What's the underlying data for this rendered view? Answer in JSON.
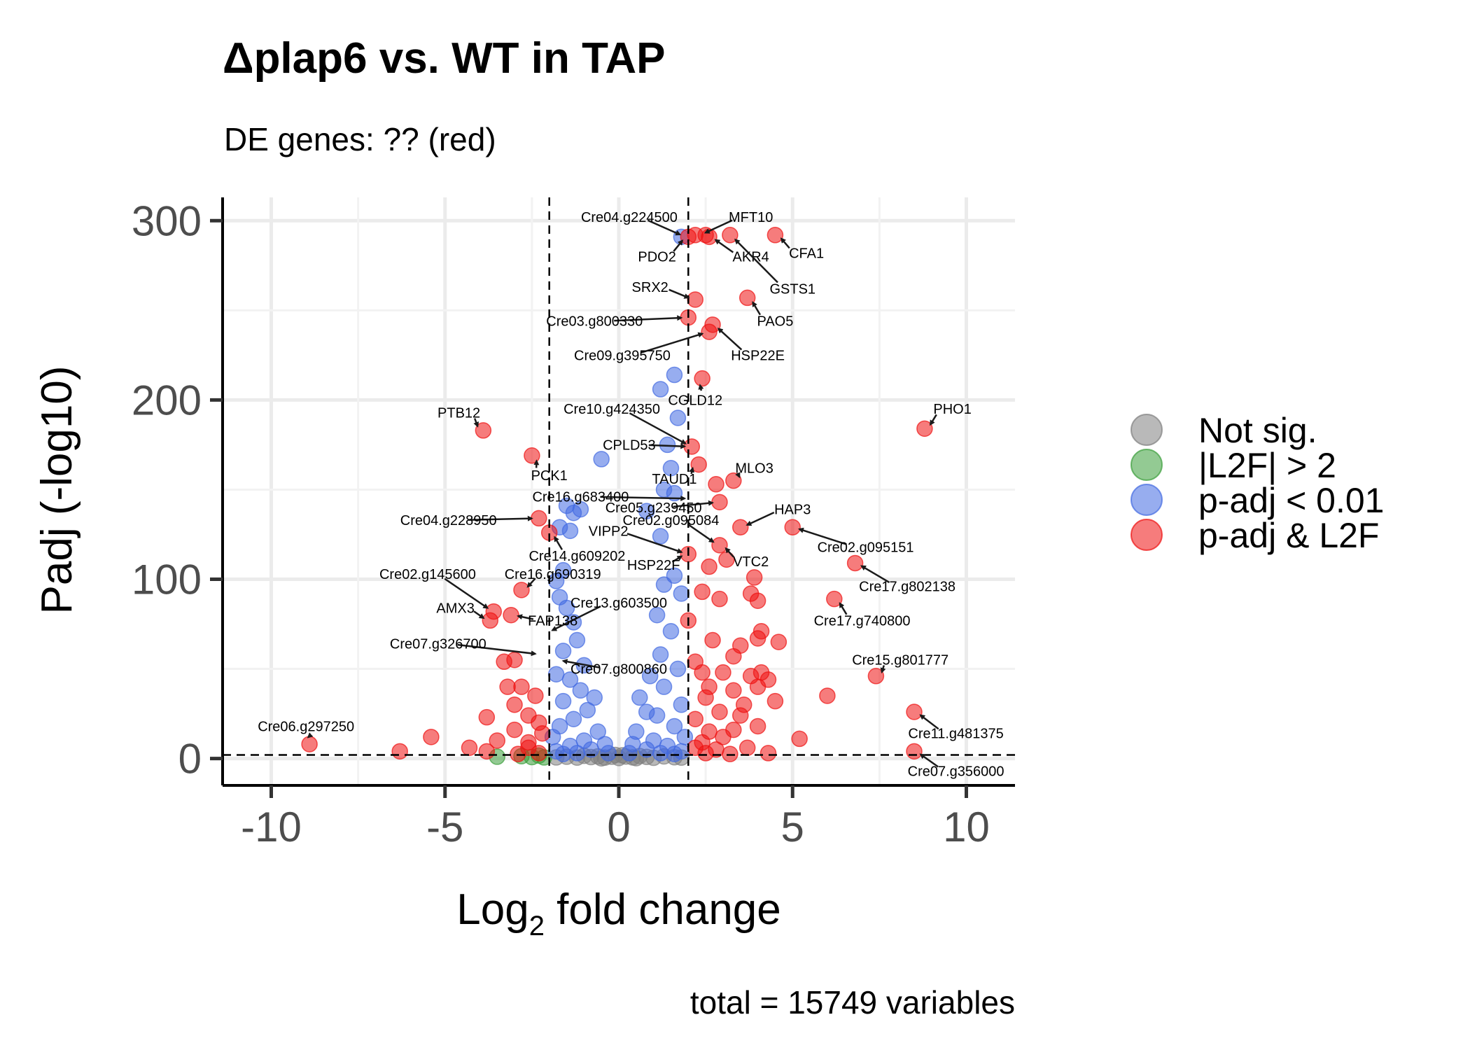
{
  "chart_data": {
    "type": "scatter",
    "title": "Δplap6 vs. WT in TAP",
    "subtitle": "DE genes: ?? (red)",
    "xlabel_main": "Log",
    "xlabel_sub": "2",
    "xlabel_rest": " fold change",
    "ylabel": "Padj (-log10)",
    "caption": "total = 15749 variables",
    "xlim": [
      -11.4,
      11.4
    ],
    "ylim": [
      -15,
      313
    ],
    "x_ticks": [
      -10,
      -5,
      0,
      5,
      10
    ],
    "x_tick_labels": [
      "-10",
      "-5",
      "0",
      "5",
      "10"
    ],
    "y_ticks": [
      0,
      100,
      200,
      300
    ],
    "y_tick_labels": [
      "0",
      "100",
      "200",
      "300"
    ],
    "grid": true,
    "vlines": [
      -2,
      2
    ],
    "hline": 2,
    "legend_position": "right",
    "legend": [
      {
        "key": "ns",
        "label": "Not sig.",
        "color": "#7f7f7f"
      },
      {
        "key": "l2f",
        "label": "|L2F| > 2",
        "color": "#3a9e3a"
      },
      {
        "key": "padj",
        "label": "p-adj < 0.01",
        "color": "#4169e1"
      },
      {
        "key": "both",
        "label": "p-adj & L2F",
        "color": "#ee1111"
      }
    ],
    "series": [
      {
        "key": "ns",
        "points": [
          [
            -1.5,
            1
          ],
          [
            -1.2,
            0.5
          ],
          [
            -1,
            1.5
          ],
          [
            -0.8,
            0.8
          ],
          [
            -0.6,
            1.2
          ],
          [
            -0.4,
            0.5
          ],
          [
            -0.2,
            1
          ],
          [
            0,
            0.3
          ],
          [
            0.2,
            1.1
          ],
          [
            0.4,
            0.6
          ],
          [
            0.6,
            1.4
          ],
          [
            0.8,
            0.9
          ],
          [
            1,
            0.4
          ],
          [
            1.3,
            1.2
          ],
          [
            1.6,
            0.7
          ],
          [
            -0.1,
            2
          ],
          [
            0.1,
            1.8
          ],
          [
            0.5,
            0.2
          ],
          [
            -0.5,
            0.1
          ],
          [
            1.8,
            0.5
          ],
          [
            -1.8,
            0.6
          ]
        ]
      },
      {
        "key": "l2f",
        "points": [
          [
            -3.5,
            1
          ],
          [
            -2.8,
            1.3
          ],
          [
            -2.5,
            0.8
          ],
          [
            -2.3,
            1.6
          ],
          [
            -2.15,
            0.6
          ]
        ]
      },
      {
        "key": "padj",
        "points": [
          [
            1.8,
            291
          ],
          [
            1.6,
            214
          ],
          [
            1.2,
            206
          ],
          [
            1.7,
            190
          ],
          [
            1.4,
            175
          ],
          [
            -0.5,
            167
          ],
          [
            1.5,
            162
          ],
          [
            1.3,
            150
          ],
          [
            1.6,
            148
          ],
          [
            -1.5,
            141
          ],
          [
            -1.1,
            139
          ],
          [
            -1.3,
            137
          ],
          [
            0.8,
            138
          ],
          [
            -1.7,
            129
          ],
          [
            -1.4,
            127
          ],
          [
            1.2,
            124
          ],
          [
            -1.6,
            105
          ],
          [
            -1.8,
            99
          ],
          [
            1.6,
            102
          ],
          [
            1.3,
            97
          ],
          [
            -1.7,
            90
          ],
          [
            1.8,
            92
          ],
          [
            -1.5,
            84
          ],
          [
            -1.3,
            76
          ],
          [
            1.1,
            80
          ],
          [
            -1.2,
            66
          ],
          [
            1.5,
            71
          ],
          [
            -1.6,
            60
          ],
          [
            1.2,
            58
          ],
          [
            -1.0,
            52
          ],
          [
            -1.8,
            47
          ],
          [
            1.7,
            50
          ],
          [
            -1.4,
            44
          ],
          [
            0.9,
            46
          ],
          [
            -1.1,
            38
          ],
          [
            1.3,
            40
          ],
          [
            -0.7,
            34
          ],
          [
            0.6,
            34
          ],
          [
            -1.6,
            32
          ],
          [
            1.8,
            30
          ],
          [
            -0.9,
            27
          ],
          [
            0.8,
            26
          ],
          [
            -1.3,
            22
          ],
          [
            1.1,
            24
          ],
          [
            -1.7,
            18
          ],
          [
            1.6,
            18
          ],
          [
            -0.6,
            15
          ],
          [
            0.5,
            15
          ],
          [
            -1.9,
            12
          ],
          [
            1.9,
            12
          ],
          [
            -1.0,
            10
          ],
          [
            1.0,
            10
          ],
          [
            -0.4,
            8
          ],
          [
            0.4,
            8
          ],
          [
            -1.4,
            7
          ],
          [
            1.4,
            7
          ],
          [
            -0.8,
            5
          ],
          [
            0.8,
            5
          ],
          [
            -1.8,
            4
          ],
          [
            1.8,
            4
          ],
          [
            -1.2,
            3
          ],
          [
            1.2,
            3
          ],
          [
            -0.3,
            3
          ],
          [
            0.3,
            3
          ],
          [
            -1.6,
            2.5
          ],
          [
            1.6,
            2.5
          ]
        ]
      },
      {
        "key": "both",
        "points": [
          [
            2.0,
            291
          ],
          [
            2.2,
            292
          ],
          [
            2.5,
            292
          ],
          [
            2.6,
            291
          ],
          [
            3.2,
            292
          ],
          [
            4.5,
            292
          ],
          [
            2.2,
            256
          ],
          [
            3.7,
            257
          ],
          [
            2.0,
            246
          ],
          [
            2.7,
            242
          ],
          [
            2.6,
            238
          ],
          [
            2.4,
            212
          ],
          [
            2.1,
            174
          ],
          [
            2.3,
            164
          ],
          [
            -3.9,
            183
          ],
          [
            -2.5,
            169
          ],
          [
            8.8,
            184
          ],
          [
            3.3,
            155
          ],
          [
            2.8,
            153
          ],
          [
            2.9,
            143
          ],
          [
            -2.3,
            134
          ],
          [
            3.5,
            129
          ],
          [
            5.0,
            129
          ],
          [
            -2.0,
            126
          ],
          [
            2.9,
            119
          ],
          [
            2.0,
            114
          ],
          [
            2.6,
            107
          ],
          [
            3.1,
            111
          ],
          [
            3.9,
            101
          ],
          [
            6.8,
            109
          ],
          [
            -2.8,
            94
          ],
          [
            2.4,
            93
          ],
          [
            2.9,
            89
          ],
          [
            3.8,
            92
          ],
          [
            4.0,
            88
          ],
          [
            6.2,
            89
          ],
          [
            -3.6,
            82
          ],
          [
            -3.7,
            77
          ],
          [
            -3.1,
            80
          ],
          [
            2.0,
            77
          ],
          [
            4.1,
            71
          ],
          [
            4.0,
            67
          ],
          [
            2.7,
            66
          ],
          [
            3.5,
            63
          ],
          [
            4.6,
            65
          ],
          [
            2.2,
            54
          ],
          [
            -3.3,
            54
          ],
          [
            -3.0,
            55
          ],
          [
            3.3,
            57
          ],
          [
            4.1,
            48
          ],
          [
            7.4,
            46
          ],
          [
            3.0,
            48
          ],
          [
            2.4,
            48
          ],
          [
            3.8,
            46
          ],
          [
            4.3,
            44
          ],
          [
            -3.2,
            40
          ],
          [
            -2.8,
            40
          ],
          [
            2.6,
            40
          ],
          [
            3.3,
            38
          ],
          [
            4.0,
            40
          ],
          [
            6.0,
            35
          ],
          [
            4.5,
            32
          ],
          [
            -2.4,
            35
          ],
          [
            -3.0,
            30
          ],
          [
            2.5,
            34
          ],
          [
            3.6,
            30
          ],
          [
            8.5,
            26
          ],
          [
            -3.8,
            23
          ],
          [
            -2.6,
            24
          ],
          [
            2.9,
            26
          ],
          [
            3.5,
            24
          ],
          [
            2.2,
            22
          ],
          [
            -2.3,
            20
          ],
          [
            4.0,
            18
          ],
          [
            3.3,
            16
          ],
          [
            -5.4,
            12
          ],
          [
            -3.0,
            16
          ],
          [
            -2.2,
            14
          ],
          [
            2.6,
            15
          ],
          [
            5.2,
            11
          ],
          [
            3.0,
            12
          ],
          [
            -3.5,
            10
          ],
          [
            -2.6,
            9
          ],
          [
            2.4,
            9
          ],
          [
            -8.9,
            8
          ],
          [
            -6.3,
            4
          ],
          [
            -4.3,
            6
          ],
          [
            -3.8,
            4
          ],
          [
            -2.6,
            6
          ],
          [
            2.2,
            6
          ],
          [
            2.8,
            5
          ],
          [
            3.7,
            6
          ],
          [
            4.3,
            3
          ],
          [
            8.5,
            4
          ],
          [
            -2.3,
            3
          ],
          [
            2.5,
            3
          ],
          [
            -2.9,
            2.5
          ],
          [
            3.2,
            2.5
          ]
        ]
      }
    ],
    "labels": [
      {
        "text": "Cre04.g224500",
        "x": 1.95,
        "y": 291,
        "lx": 0.3,
        "ly": 302
      },
      {
        "text": "MFT10",
        "x": 2.3,
        "y": 292,
        "lx": 3.8,
        "ly": 302
      },
      {
        "text": "PDO2",
        "x": 2.0,
        "y": 291,
        "lx": 1.1,
        "ly": 280
      },
      {
        "text": "AKR4",
        "x": 2.6,
        "y": 291,
        "lx": 3.8,
        "ly": 280
      },
      {
        "text": "CFA1",
        "x": 4.5,
        "y": 292,
        "lx": 5.4,
        "ly": 282
      },
      {
        "text": "GSTS1",
        "x": 3.2,
        "y": 292,
        "lx": 5.0,
        "ly": 262
      },
      {
        "text": "SRX2",
        "x": 2.2,
        "y": 256,
        "lx": 0.9,
        "ly": 263
      },
      {
        "text": "PAO5",
        "x": 3.7,
        "y": 257,
        "lx": 4.5,
        "ly": 244
      },
      {
        "text": "Cre03.g800330",
        "x": 2.0,
        "y": 246,
        "lx": -0.7,
        "ly": 244
      },
      {
        "text": "HSP22E",
        "x": 2.7,
        "y": 242,
        "lx": 4.0,
        "ly": 225
      },
      {
        "text": "Cre09.g395750",
        "x": 2.6,
        "y": 238,
        "lx": 0.1,
        "ly": 225
      },
      {
        "text": "CGLD12",
        "x": 2.4,
        "y": 212,
        "lx": 2.2,
        "ly": 200
      },
      {
        "text": "Cre10.g424350",
        "x": 2.1,
        "y": 174,
        "lx": -0.2,
        "ly": 195
      },
      {
        "text": "PTB12",
        "x": -3.9,
        "y": 183,
        "lx": -4.6,
        "ly": 193
      },
      {
        "text": "PHO1",
        "x": 8.8,
        "y": 184,
        "lx": 9.6,
        "ly": 195
      },
      {
        "text": "CPLD53",
        "x": 2.1,
        "y": 174,
        "lx": 0.3,
        "ly": 175
      },
      {
        "text": "PCK1",
        "x": -2.5,
        "y": 169,
        "lx": -2.0,
        "ly": 158
      },
      {
        "text": "MLO3",
        "x": 3.3,
        "y": 155,
        "lx": 3.9,
        "ly": 162
      },
      {
        "text": "TAUD1",
        "x": 2.3,
        "y": 164,
        "lx": 1.6,
        "ly": 156
      },
      {
        "text": "Cre16.g683400",
        "x": 2.1,
        "y": 145,
        "lx": -1.1,
        "ly": 146
      },
      {
        "text": "Cre05.g239450",
        "x": 2.9,
        "y": 143,
        "lx": 1.0,
        "ly": 140
      },
      {
        "text": "HAP3",
        "x": 3.5,
        "y": 129,
        "lx": 5.0,
        "ly": 139
      },
      {
        "text": "Cre04.g228950",
        "x": -2.3,
        "y": 134,
        "lx": -4.9,
        "ly": 133
      },
      {
        "text": "Cre02.g095084",
        "x": 2.9,
        "y": 119,
        "lx": 1.5,
        "ly": 133
      },
      {
        "text": "VIPP2",
        "x": 2.0,
        "y": 114,
        "lx": -0.3,
        "ly": 127
      },
      {
        "text": "Cre02.g095151",
        "x": 5.0,
        "y": 129,
        "lx": 7.1,
        "ly": 118
      },
      {
        "text": "Cre14.g609202",
        "x": -2.0,
        "y": 126,
        "lx": -1.2,
        "ly": 113
      },
      {
        "text": "VTC2",
        "x": 2.9,
        "y": 119,
        "lx": 3.8,
        "ly": 110
      },
      {
        "text": "HSP22F",
        "x": 2.0,
        "y": 114,
        "lx": 1.0,
        "ly": 108
      },
      {
        "text": "Cre02.g145600",
        "x": -3.6,
        "y": 82,
        "lx": -5.5,
        "ly": 103
      },
      {
        "text": "Cre16.g690319",
        "x": -2.8,
        "y": 94,
        "lx": -1.9,
        "ly": 103
      },
      {
        "text": "Cre17.g802138",
        "x": 6.8,
        "y": 109,
        "lx": 8.3,
        "ly": 96
      },
      {
        "text": "Cre13.g603500",
        "x": -2.1,
        "y": 70,
        "lx": 0,
        "ly": 87
      },
      {
        "text": "AMX3",
        "x": -3.7,
        "y": 77,
        "lx": -4.7,
        "ly": 84
      },
      {
        "text": "FAP138",
        "x": -3.1,
        "y": 80,
        "lx": -1.9,
        "ly": 77
      },
      {
        "text": "Cre17.g740800",
        "x": 6.2,
        "y": 89,
        "lx": 7.0,
        "ly": 77
      },
      {
        "text": "Cre07.g326700",
        "x": -2.2,
        "y": 58,
        "lx": -5.2,
        "ly": 64
      },
      {
        "text": "Cre15.g801777",
        "x": 7.4,
        "y": 46,
        "lx": 8.1,
        "ly": 55
      },
      {
        "text": "Cre07.g800860",
        "x": -1.8,
        "y": 55,
        "lx": 0,
        "ly": 50
      },
      {
        "text": "Cre06.g297250",
        "x": -8.9,
        "y": 8,
        "lx": -9.0,
        "ly": 18
      },
      {
        "text": "Cre11.g481375",
        "x": 8.5,
        "y": 26,
        "lx": 9.7,
        "ly": 14
      },
      {
        "text": "Cre07.g356000",
        "x": 8.5,
        "y": 4,
        "lx": 9.7,
        "ly": -7
      }
    ]
  }
}
